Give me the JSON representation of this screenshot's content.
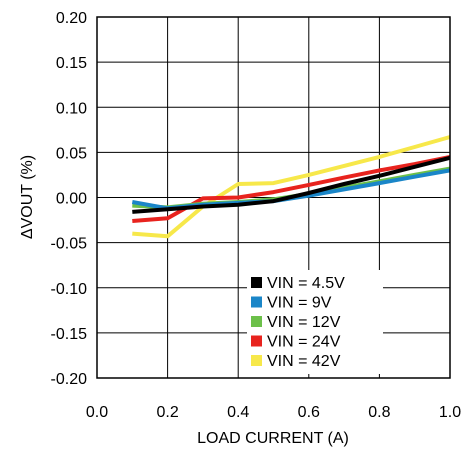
{
  "chart_data": {
    "type": "line",
    "title": "",
    "xlabel": "LOAD CURRENT (A)",
    "ylabel": "ΔVOUT (%)",
    "xlim": [
      0.0,
      1.0
    ],
    "ylim": [
      -0.2,
      0.2
    ],
    "x_ticks": [
      "0.0",
      "0.2",
      "0.4",
      "0.6",
      "0.8",
      "1.0"
    ],
    "y_ticks": [
      "0.20",
      "0.15",
      "0.10",
      "0.05",
      "0.00",
      "-0.05",
      "-0.10",
      "-0.15",
      "-0.20"
    ],
    "grid": true,
    "legend_position": "bottom-center",
    "series": [
      {
        "name": "VIN = 4.5V",
        "color": "#000000",
        "x": [
          0.1,
          0.2,
          0.3,
          0.4,
          0.5,
          0.6,
          0.7,
          0.8,
          0.9,
          1.0
        ],
        "y": [
          -0.016,
          -0.013,
          -0.01,
          -0.008,
          -0.004,
          0.005,
          0.015,
          0.024,
          0.034,
          0.044
        ]
      },
      {
        "name": "VIN = 9V",
        "color": "#1a86c8",
        "x": [
          0.1,
          0.2,
          0.3,
          0.4,
          0.5,
          0.6,
          0.7,
          0.8,
          0.9,
          1.0
        ],
        "y": [
          -0.005,
          -0.012,
          -0.008,
          -0.006,
          -0.004,
          0.002,
          0.009,
          0.016,
          0.023,
          0.03
        ]
      },
      {
        "name": "VIN = 12V",
        "color": "#6cc04a",
        "x": [
          0.1,
          0.2,
          0.3,
          0.4,
          0.5,
          0.6,
          0.7,
          0.8,
          0.9,
          1.0
        ],
        "y": [
          -0.009,
          -0.011,
          -0.007,
          -0.005,
          -0.002,
          0.004,
          0.011,
          0.018,
          0.025,
          0.032
        ]
      },
      {
        "name": "VIN = 24V",
        "color": "#e8231e",
        "x": [
          0.1,
          0.2,
          0.3,
          0.4,
          0.5,
          0.6,
          0.7,
          0.8,
          0.9,
          1.0
        ],
        "y": [
          -0.026,
          -0.023,
          -0.001,
          0.0,
          0.006,
          0.014,
          0.022,
          0.03,
          0.037,
          0.045
        ]
      },
      {
        "name": "VIN = 42V",
        "color": "#f7e84a",
        "x": [
          0.1,
          0.2,
          0.3,
          0.4,
          0.5,
          0.6,
          0.7,
          0.8,
          0.9,
          1.0
        ],
        "y": [
          -0.04,
          -0.043,
          -0.01,
          0.015,
          0.016,
          0.025,
          0.035,
          0.045,
          0.056,
          0.067
        ]
      }
    ]
  }
}
